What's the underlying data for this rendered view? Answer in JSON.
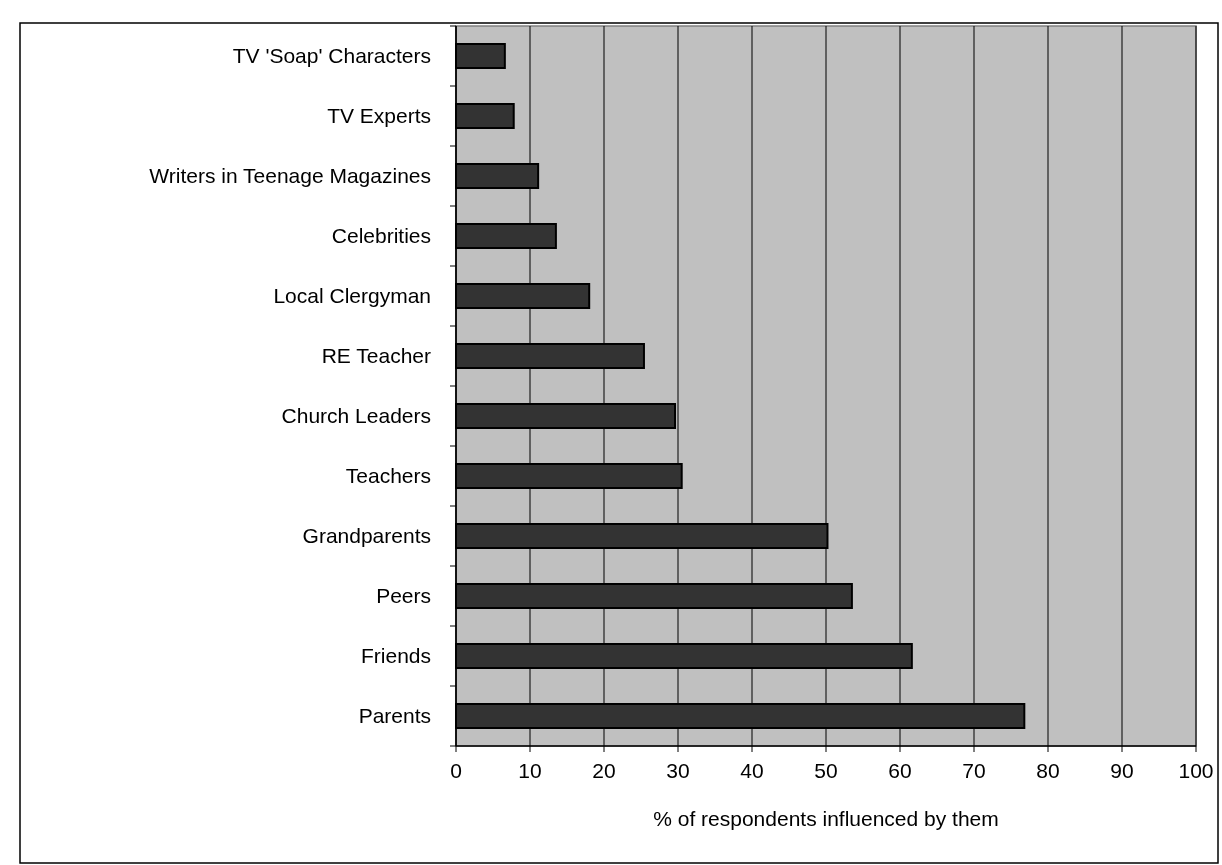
{
  "chart_data": {
    "type": "bar",
    "orientation": "horizontal",
    "xlabel": "% of respondents influenced by them",
    "categories": [
      "TV 'Soap' Characters",
      "TV Experts",
      "Writers in Teenage Magazines",
      "Celebrities",
      "Local Clergyman",
      "RE Teacher",
      "Church Leaders",
      "Teachers",
      "Grandparents",
      "Peers",
      "Friends",
      "Parents"
    ],
    "values": [
      6.6,
      7.8,
      11.1,
      13.5,
      18.0,
      25.4,
      29.6,
      30.5,
      50.2,
      53.5,
      61.6,
      76.8
    ],
    "color": "#333333",
    "xlim": [
      0,
      100
    ],
    "xticks": [
      0,
      10,
      20,
      30,
      40,
      50,
      60,
      70,
      80,
      90,
      100
    ],
    "grid": "x"
  }
}
